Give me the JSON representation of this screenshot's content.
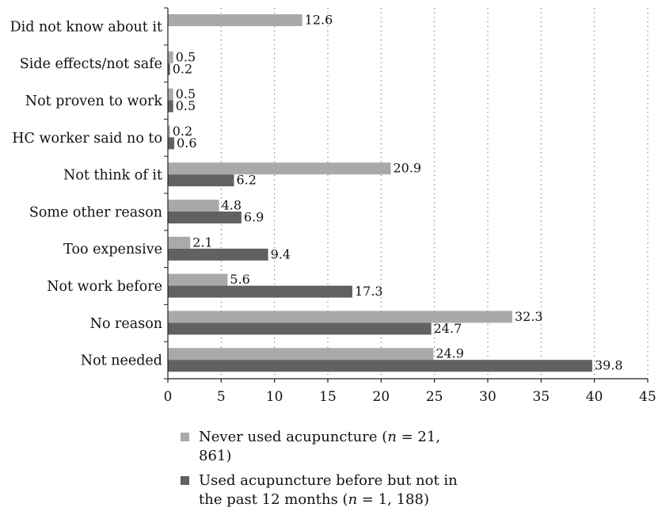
{
  "chart_data": {
    "type": "bar",
    "orientation": "horizontal",
    "categories": [
      "Did not know about it",
      "Side effects/not safe",
      "Not proven to work",
      "HC worker said no to",
      "Not think of it",
      "Some other reason",
      "Too expensive",
      "Not work before",
      "No reason",
      "Not needed"
    ],
    "series": [
      {
        "name": "Never used acupuncture (n = 21, 861)",
        "color": "#a9a9a9",
        "values": [
          12.6,
          0.5,
          0.5,
          0.2,
          20.9,
          4.8,
          2.1,
          5.6,
          32.3,
          24.9
        ],
        "labels": [
          "12.6",
          "0.5",
          "0.5",
          "0.2",
          "20.9",
          "4.8",
          "2.1",
          "5.6",
          "32.3",
          "24.9"
        ]
      },
      {
        "name": "Used acupuncture before but not in the past 12 months (n = 1, 188)",
        "color": "#616161",
        "values": [
          null,
          0.2,
          0.5,
          0.6,
          6.2,
          6.9,
          9.4,
          17.3,
          24.7,
          39.8
        ],
        "labels": [
          "",
          "0.2",
          "0.5",
          "0.6",
          "6.2",
          "6.9",
          "9.4",
          "17.3",
          "24.7",
          "39.8"
        ]
      }
    ],
    "x_ticks": [
      "0",
      "5",
      "10",
      "15",
      "20",
      "25",
      "30",
      "35",
      "40",
      "45"
    ],
    "xlim": [
      0,
      45
    ],
    "grid": "vertical dotted",
    "legend_position": "bottom"
  },
  "legend": {
    "items": [
      {
        "prefix": "Never used acupuncture (",
        "var": "n",
        "suffix": " = 21, 861)",
        "color": "#a9a9a9"
      },
      {
        "prefix": "Used acupuncture before but not in the past 12 months (",
        "var": "n",
        "suffix": " = 1, 188)",
        "color": "#616161"
      }
    ]
  }
}
